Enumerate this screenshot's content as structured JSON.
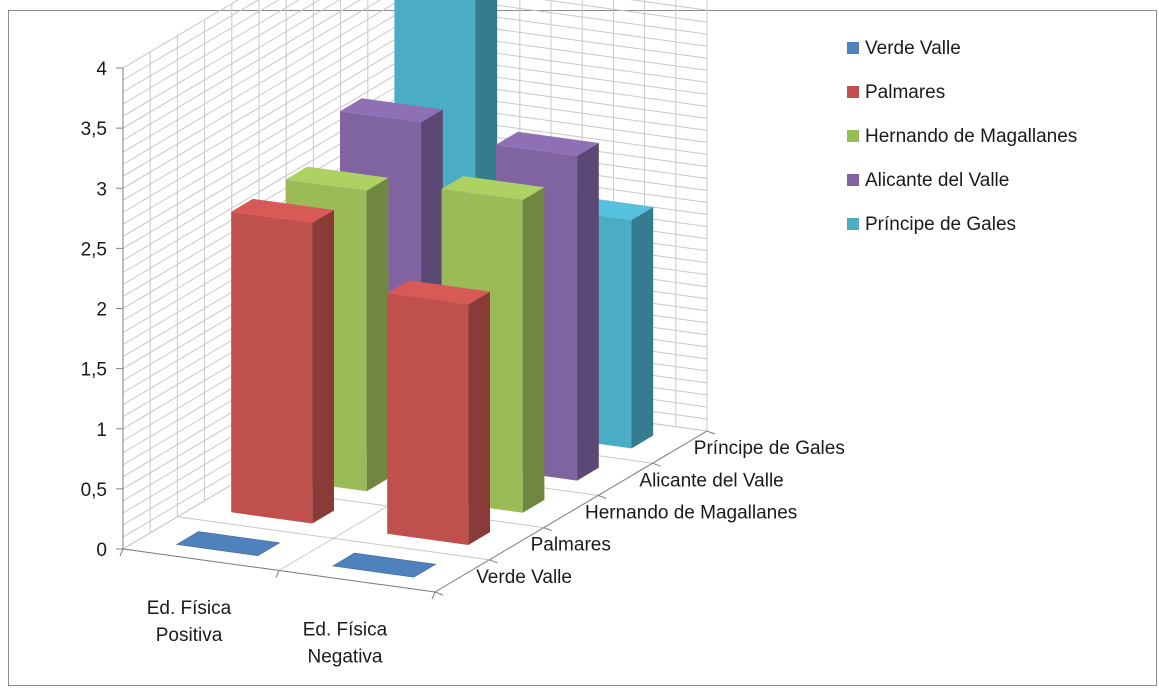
{
  "chart_data": {
    "type": "bar",
    "subtype": "3d-column",
    "categories": [
      "Ed. Física Positiva",
      "Ed. Física Negativa"
    ],
    "category_lines": [
      [
        "Ed. Física",
        "Positiva"
      ],
      [
        "Ed. Física",
        "Negativa"
      ]
    ],
    "series": [
      {
        "name": "Verde Valle",
        "color": "#4f81bd",
        "values": [
          0,
          0
        ]
      },
      {
        "name": "Palmares",
        "color": "#c0504d",
        "values": [
          2.5,
          2
        ]
      },
      {
        "name": "Hernando de Magallanes",
        "color": "#9bbb59",
        "values": [
          2.5,
          2.6
        ]
      },
      {
        "name": "Alicante del Valle",
        "color": "#8064a2",
        "values": [
          2.8,
          2.7
        ]
      },
      {
        "name": "Príncipe de Gales",
        "color": "#4bacc6",
        "values": [
          3.6,
          1.9
        ]
      }
    ],
    "y_ticks": [
      "0",
      "0,5",
      "1",
      "1,5",
      "2",
      "2,5",
      "3",
      "3,5",
      "4"
    ],
    "ylim": [
      0,
      4
    ],
    "grid": true,
    "legend_position": "right",
    "title": "",
    "xlabel": "",
    "ylabel": ""
  }
}
